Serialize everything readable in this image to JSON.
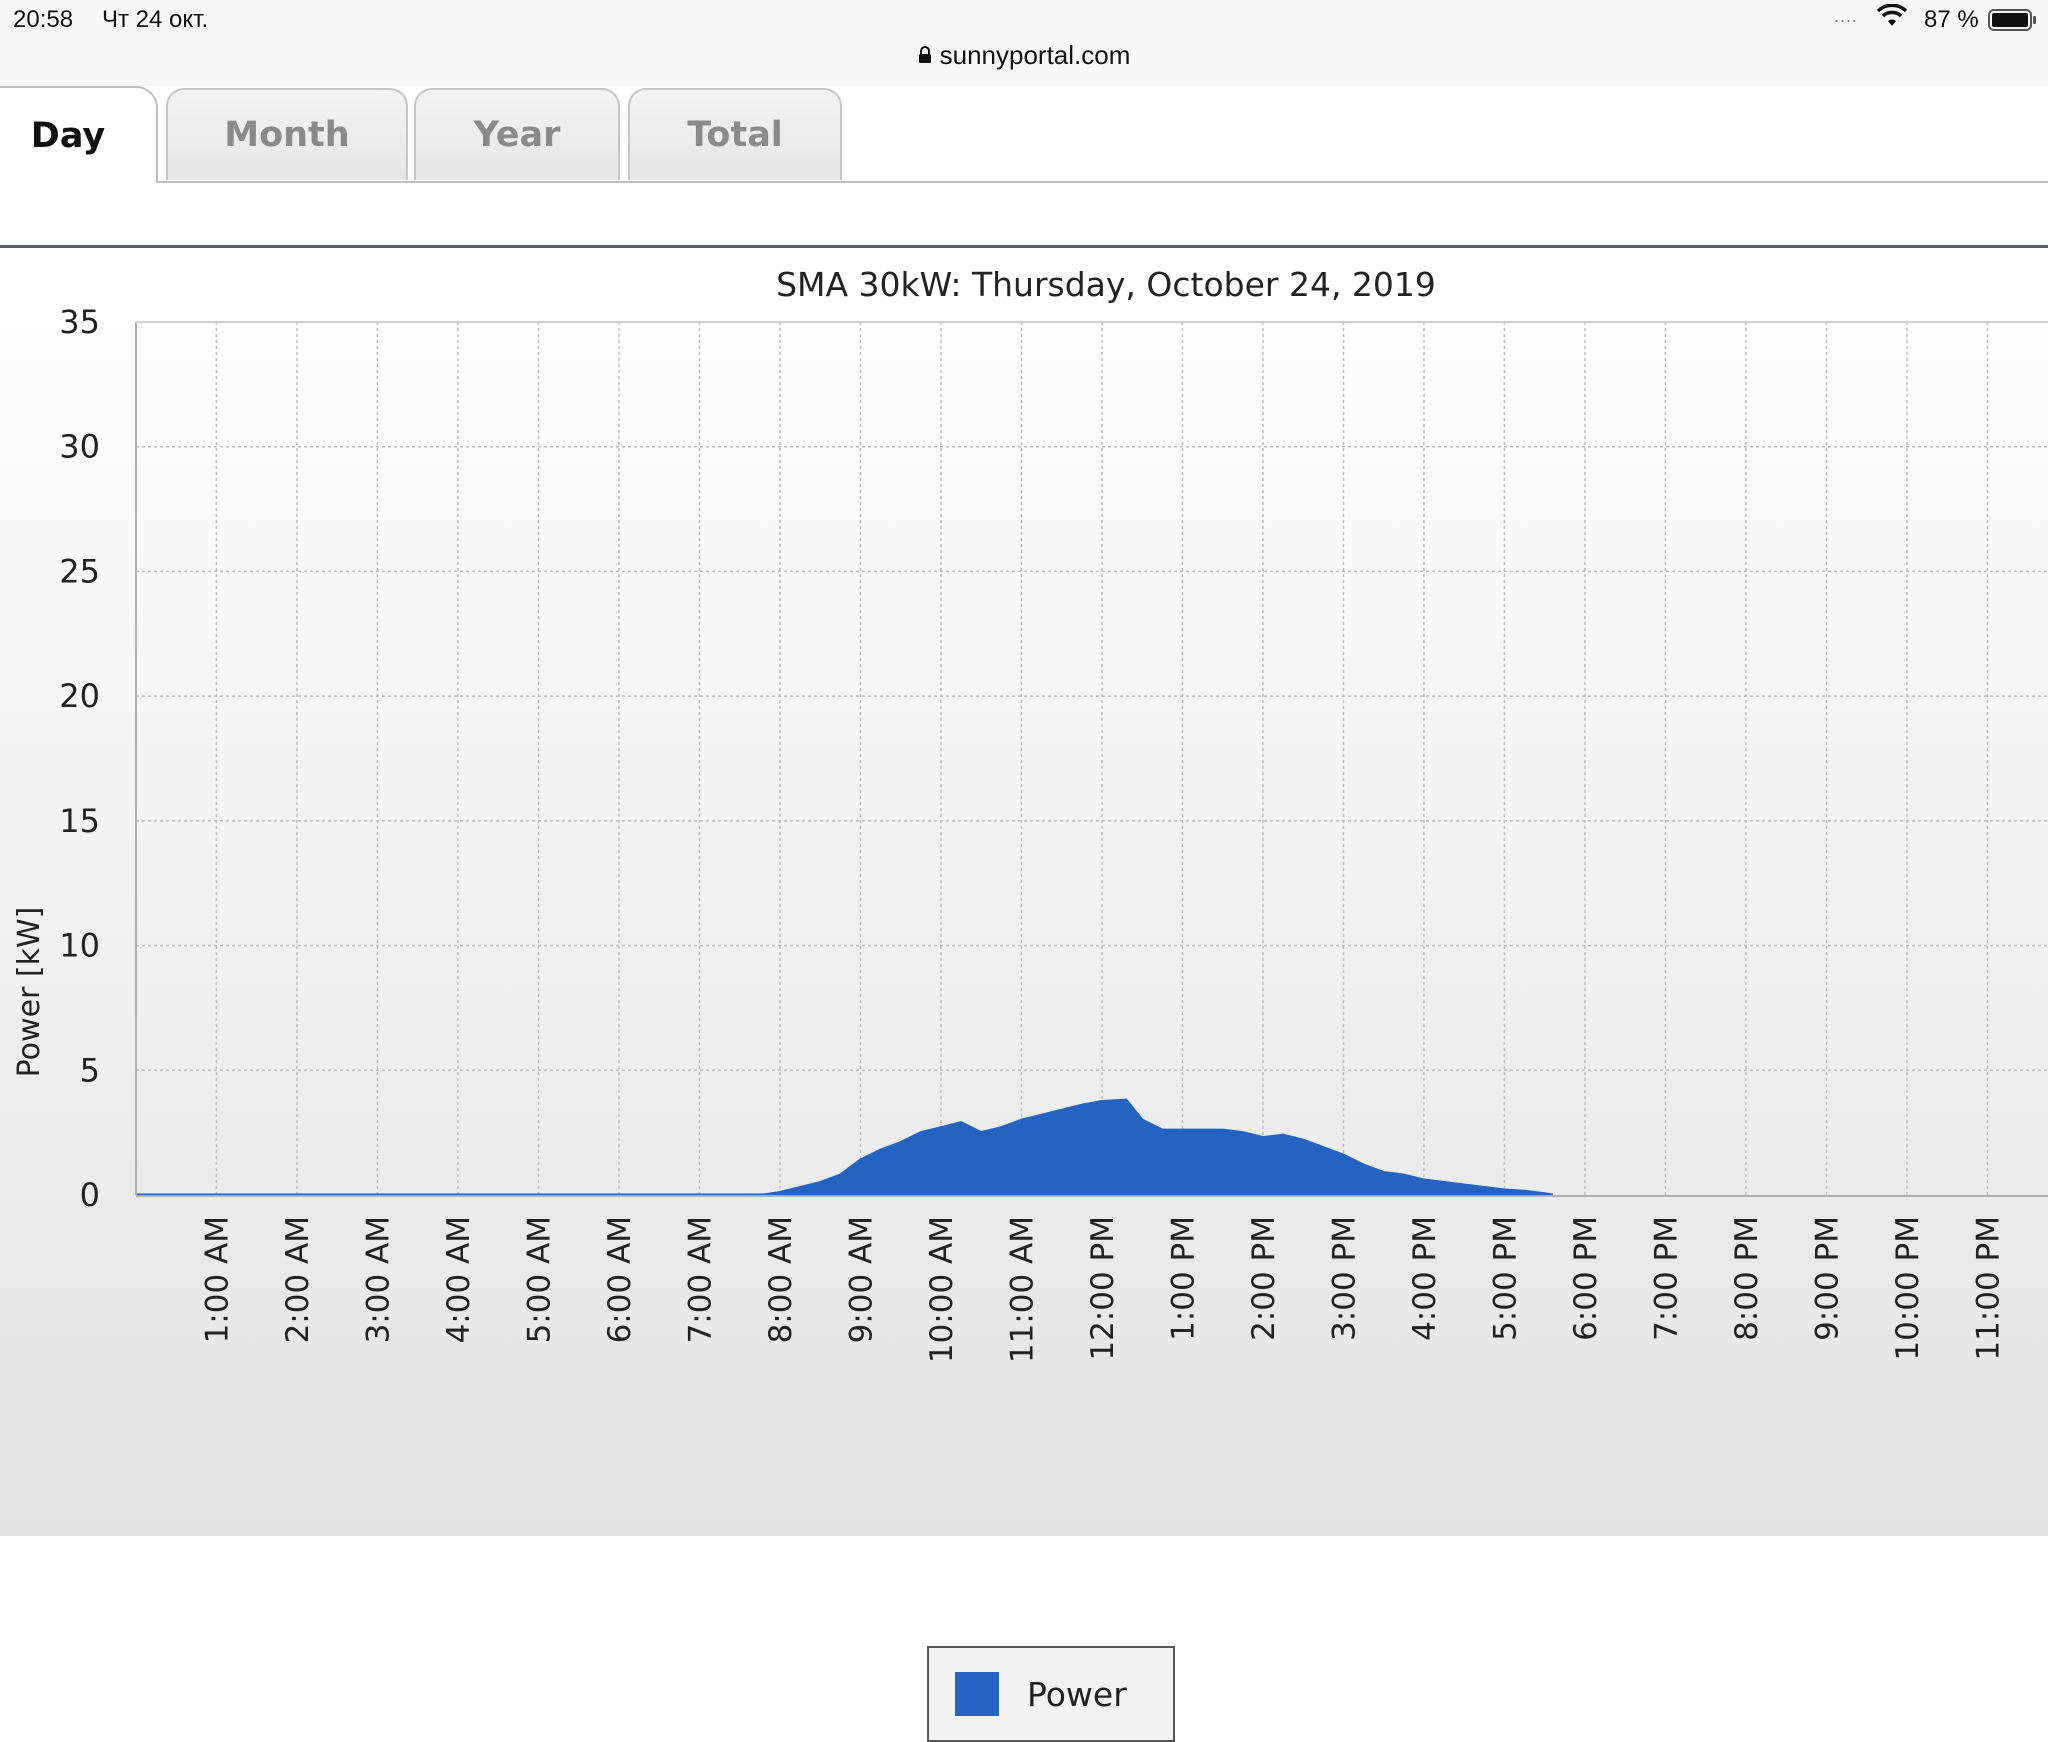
{
  "status_bar": {
    "time": "20:58",
    "date": "Чт 24 окт.",
    "signal": "....",
    "battery_percent": "87 %"
  },
  "url_bar": {
    "domain": "sunnyportal.com"
  },
  "tabs": [
    {
      "label": "Day",
      "active": true
    },
    {
      "label": "Month",
      "active": false
    },
    {
      "label": "Year",
      "active": false
    },
    {
      "label": "Total",
      "active": false
    }
  ],
  "colors": {
    "series_fill": "#2563c2",
    "grid": "#bdbdbd",
    "axis": "#b0b0b0"
  },
  "chart_data": {
    "type": "area",
    "title": "SMA 30kW: Thursday, October 24, 2019",
    "ylabel": "Power [kW]",
    "xlabel": "",
    "ylim": [
      0,
      35
    ],
    "yticks": [
      0,
      5,
      10,
      15,
      20,
      25,
      30,
      35
    ],
    "xlim_hours": [
      0.1,
      24.0
    ],
    "xticks": [
      "1:00 AM",
      "2:00 AM",
      "3:00 AM",
      "4:00 AM",
      "5:00 AM",
      "6:00 AM",
      "7:00 AM",
      "8:00 AM",
      "9:00 AM",
      "10:00 AM",
      "11:00 AM",
      "12:00 PM",
      "1:00 PM",
      "2:00 PM",
      "3:00 PM",
      "4:00 PM",
      "5:00 PM",
      "6:00 PM",
      "7:00 PM",
      "8:00 PM",
      "9:00 PM",
      "10:00 PM",
      "11:00 PM"
    ],
    "grid": true,
    "legend_position": "bottom-center",
    "series": [
      {
        "name": "Power",
        "points": [
          [
            0.0,
            0
          ],
          [
            7.8,
            0
          ],
          [
            8.0,
            0.1
          ],
          [
            8.5,
            0.5
          ],
          [
            8.75,
            0.8
          ],
          [
            9.0,
            1.4
          ],
          [
            9.25,
            1.8
          ],
          [
            9.5,
            2.1
          ],
          [
            9.75,
            2.5
          ],
          [
            10.0,
            2.7
          ],
          [
            10.25,
            2.9
          ],
          [
            10.5,
            2.5
          ],
          [
            10.75,
            2.7
          ],
          [
            11.0,
            3.0
          ],
          [
            11.25,
            3.2
          ],
          [
            11.5,
            3.4
          ],
          [
            11.75,
            3.6
          ],
          [
            12.0,
            3.75
          ],
          [
            12.3,
            3.8
          ],
          [
            12.5,
            3.0
          ],
          [
            12.75,
            2.6
          ],
          [
            13.0,
            2.6
          ],
          [
            13.25,
            2.6
          ],
          [
            13.5,
            2.6
          ],
          [
            13.75,
            2.5
          ],
          [
            14.0,
            2.3
          ],
          [
            14.25,
            2.4
          ],
          [
            14.5,
            2.2
          ],
          [
            14.75,
            1.9
          ],
          [
            15.0,
            1.6
          ],
          [
            15.25,
            1.2
          ],
          [
            15.5,
            0.9
          ],
          [
            15.75,
            0.8
          ],
          [
            16.0,
            0.6
          ],
          [
            16.25,
            0.5
          ],
          [
            16.5,
            0.4
          ],
          [
            16.75,
            0.3
          ],
          [
            17.0,
            0.2
          ],
          [
            17.25,
            0.15
          ],
          [
            17.5,
            0.05
          ],
          [
            17.6,
            0
          ]
        ]
      }
    ]
  }
}
